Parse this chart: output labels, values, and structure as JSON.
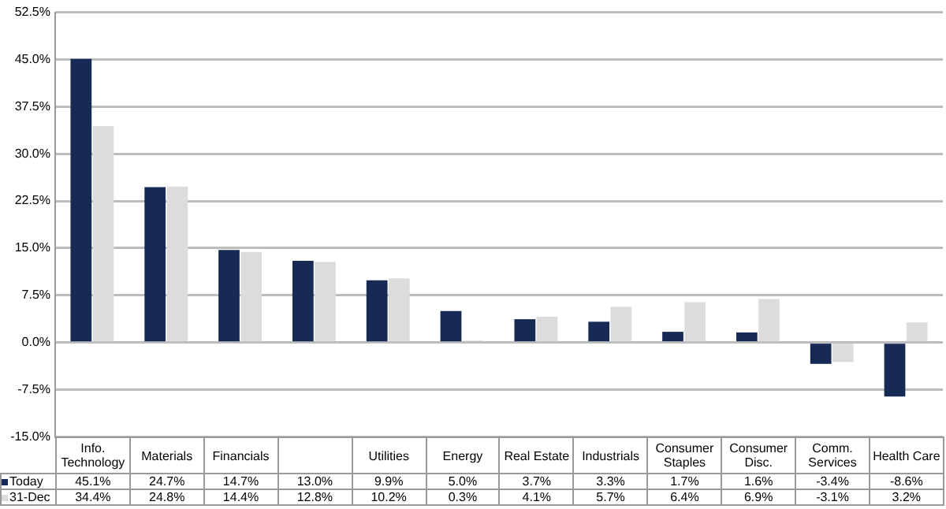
{
  "chart_data": {
    "type": "bar",
    "categories": [
      "Info. Technology",
      "Materials",
      "Financials",
      null,
      "Utilities",
      "Energy",
      "Real Estate",
      "Industrials",
      "Consumer Staples",
      "Consumer Disc.",
      "Comm. Services",
      "Health Care"
    ],
    "series": [
      {
        "name": "Today",
        "color": "#172a55",
        "values": [
          45.1,
          24.7,
          14.7,
          13.0,
          9.9,
          5.0,
          3.7,
          3.3,
          1.7,
          1.6,
          -3.4,
          -8.6
        ],
        "value_labels": [
          "45.1%",
          "24.7%",
          "14.7%",
          "13.0%",
          "9.9%",
          "5.0%",
          "3.7%",
          "3.3%",
          "1.7%",
          "1.6%",
          "-3.4%",
          "-8.6%"
        ]
      },
      {
        "name": "31-Dec",
        "color": "#dcdcdc",
        "values": [
          34.4,
          24.8,
          14.4,
          12.8,
          10.2,
          0.3,
          4.1,
          5.7,
          6.4,
          6.9,
          -3.1,
          3.2
        ],
        "value_labels": [
          "34.4%",
          "24.8%",
          "14.4%",
          "12.8%",
          "10.2%",
          "0.3%",
          "4.1%",
          "5.7%",
          "6.4%",
          "6.9%",
          "-3.1%",
          "3.2%"
        ]
      }
    ],
    "ylim": [
      -15,
      52.5
    ],
    "yticks": [
      {
        "value": -15,
        "label": "-15.0%"
      },
      {
        "value": -7.5,
        "label": "-7.5%"
      },
      {
        "value": 0,
        "label": "0.0%"
      },
      {
        "value": 7.5,
        "label": "7.5%"
      },
      {
        "value": 15,
        "label": "15.0%"
      },
      {
        "value": 22.5,
        "label": "22.5%"
      },
      {
        "value": 30,
        "label": "30.0%"
      },
      {
        "value": 37.5,
        "label": "37.5%"
      },
      {
        "value": 45,
        "label": "45.0%"
      },
      {
        "value": 52.5,
        "label": "52.5%"
      }
    ],
    "grid": "y",
    "legend": "bottom"
  }
}
